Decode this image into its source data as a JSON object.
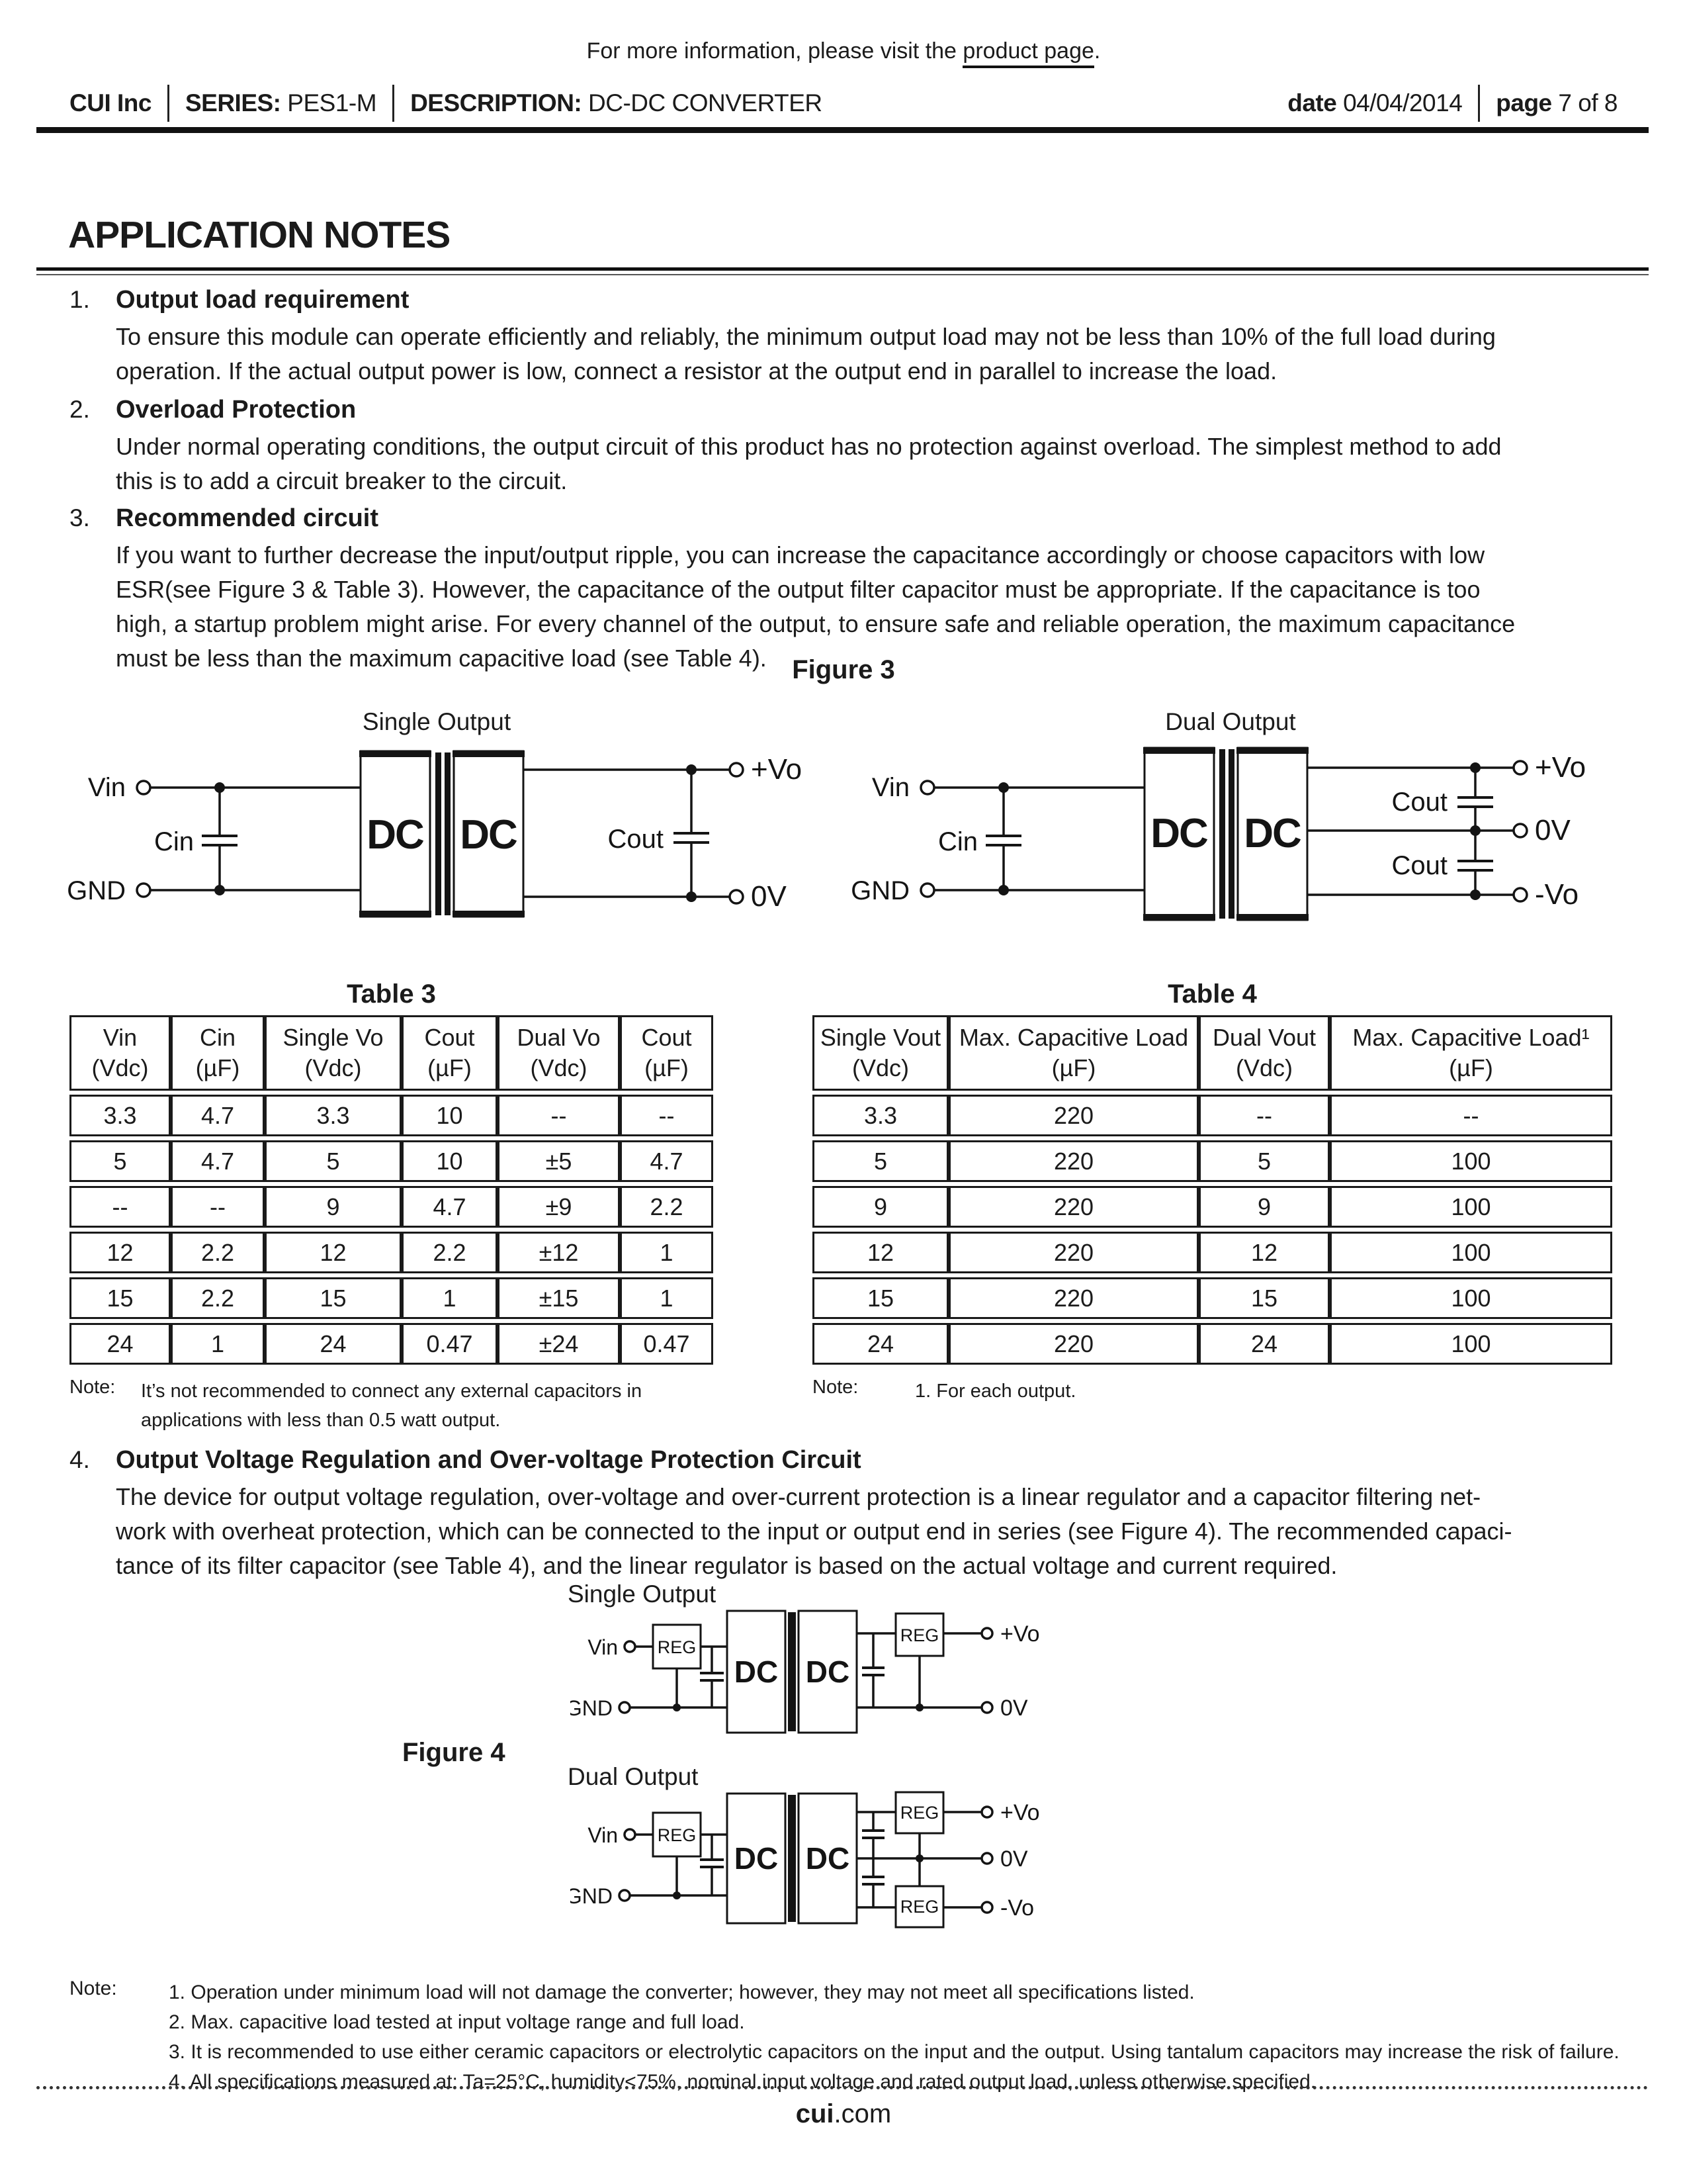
{
  "header": {
    "info_prefix": "For more information, please visit the ",
    "info_link": "product page",
    "info_suffix": ".",
    "company": "CUI Inc",
    "series_label": "SERIES:",
    "series_value": "PES1-M",
    "description_label": "DESCRIPTION:",
    "description_value": "DC-DC CONVERTER",
    "date_label": "date",
    "date_value": "04/04/2014",
    "page_label": "page",
    "page_value": "7 of 8"
  },
  "title": "APPLICATION NOTES",
  "sections": [
    {
      "number": "1.",
      "heading": "Output load requirement",
      "body": "To ensure this module can operate efficiently and reliably, the minimum output load may not be less than 10% of the full load during\noperation. If the actual output power is low, connect a resistor at the output end in parallel to increase the load."
    },
    {
      "number": "2.",
      "heading": "Overload Protection",
      "body": "Under normal operating conditions, the output circuit of this product has no protection against overload. The simplest method to add\nthis is to add a circuit breaker to the circuit."
    },
    {
      "number": "3.",
      "heading": "Recommended circuit",
      "body": "If you want to further decrease the input/output ripple, you can increase the capacitance accordingly or choose capacitors with low\nESR(see Figure 3 & Table 3). However, the capacitance of the output filter capacitor must be appropriate. If the capacitance is too\nhigh, a startup problem might arise. For every channel of the output, to ensure safe and reliable operation, the maximum capacitance\nmust be less than the maximum capacitive load (see Table 4)."
    },
    {
      "number": "4.",
      "heading": "Output Voltage Regulation and Over-voltage Protection Circuit",
      "body": "The device for output voltage regulation, over-voltage and over-current protection is a linear regulator and a capacitor filtering net-\nwork with overheat protection, which can be connected to the input or output end in series (see Figure 4). The recommended capaci-\ntance of its filter capacitor (see Table 4), and the linear regulator is based on the actual voltage and current required."
    }
  ],
  "figure3": {
    "caption": "Figure 3",
    "single_label": "Single Output",
    "dual_label": "Dual Output",
    "labels": {
      "vin": "Vin",
      "gnd": "GND",
      "cin": "Cin",
      "cout": "Cout",
      "dc": "DC",
      "pvo": "+Vo",
      "zv": "0V",
      "nvo": "-Vo"
    }
  },
  "figure4": {
    "caption": "Figure 4",
    "single_label": "Single Output",
    "dual_label": "Dual Output",
    "labels": {
      "vin": "Vin",
      "gnd": "GND",
      "reg": "REG",
      "dc": "DC",
      "pvo": "+Vo",
      "zv": "0V",
      "nvo": "-Vo"
    }
  },
  "table3": {
    "caption": "Table 3",
    "headers": [
      [
        "Vin",
        "(Vdc)"
      ],
      [
        "Cin",
        "(µF)"
      ],
      [
        "Single Vo",
        "(Vdc)"
      ],
      [
        "Cout",
        "(µF)"
      ],
      [
        "Dual Vo",
        "(Vdc)"
      ],
      [
        "Cout",
        "(µF)"
      ]
    ],
    "rows": [
      [
        "3.3",
        "4.7",
        "3.3",
        "10",
        "--",
        "--"
      ],
      [
        "5",
        "4.7",
        "5",
        "10",
        "±5",
        "4.7"
      ],
      [
        "--",
        "--",
        "9",
        "4.7",
        "±9",
        "2.2"
      ],
      [
        "12",
        "2.2",
        "12",
        "2.2",
        "±12",
        "1"
      ],
      [
        "15",
        "2.2",
        "15",
        "1",
        "±15",
        "1"
      ],
      [
        "24",
        "1",
        "24",
        "0.47",
        "±24",
        "0.47"
      ]
    ],
    "note_label": "Note:",
    "note": "It’s not recommended to connect any external capacitors in\napplications with less than 0.5 watt output."
  },
  "table4": {
    "caption": "Table 4",
    "headers": [
      [
        "Single Vout",
        "(Vdc)"
      ],
      [
        "Max. Capacitive Load",
        "(µF)"
      ],
      [
        "Dual Vout",
        "(Vdc)"
      ],
      [
        "Max. Capacitive Load¹",
        "(µF)"
      ]
    ],
    "rows": [
      [
        "3.3",
        "220",
        "--",
        "--"
      ],
      [
        "5",
        "220",
        "5",
        "100"
      ],
      [
        "9",
        "220",
        "9",
        "100"
      ],
      [
        "12",
        "220",
        "12",
        "100"
      ],
      [
        "15",
        "220",
        "15",
        "100"
      ],
      [
        "24",
        "220",
        "24",
        "100"
      ]
    ],
    "note_label": "Note:",
    "note": "1. For each output."
  },
  "footnotes": {
    "label": "Note:",
    "items": [
      "1. Operation under minimum load will not damage the converter; however, they may not meet all specifications listed.",
      "2. Max. capacitive load tested at input voltage range and full load.",
      "3. It is recommended to use either ceramic capacitors or electrolytic capacitors on the input and the output. Using tantalum capacitors may increase the risk of failure.",
      "4. All specifications measured at: Ta=25°C, humidity<75%, nominal input voltage and rated output load, unless otherwise specified."
    ]
  },
  "footer": {
    "brand_bold": "cui",
    "brand_rest": ".com"
  }
}
